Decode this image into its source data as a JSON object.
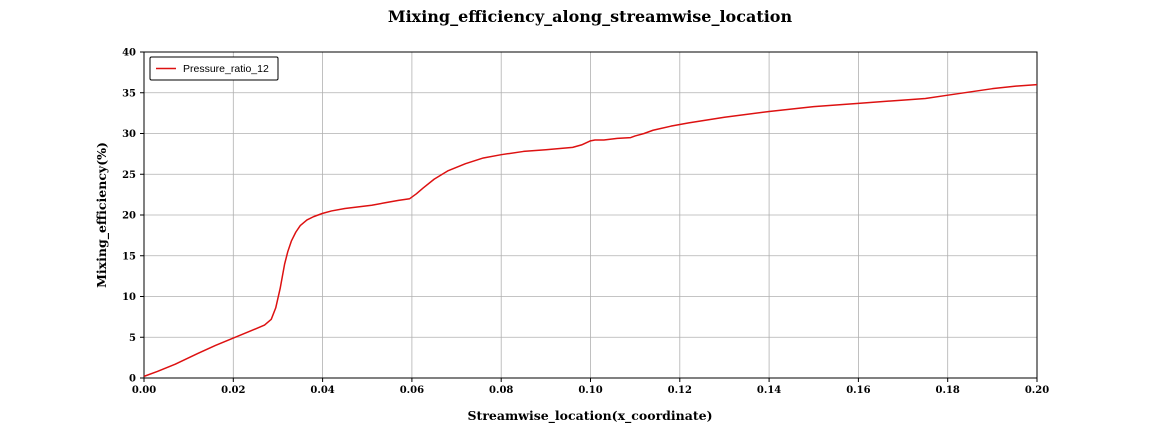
{
  "chart_data": {
    "type": "line",
    "title": "Mixing_efficiency_along_streamwise_location",
    "xlabel": "Streamwise_location(x_coordinate)",
    "ylabel": "Mixing_efficiency(%)",
    "xlim": [
      0,
      0.2
    ],
    "ylim": [
      0,
      40
    ],
    "xticks": [
      0,
      0.02,
      0.04,
      0.06,
      0.08,
      0.1,
      0.12,
      0.14,
      0.16,
      0.18,
      0.2
    ],
    "xtick_labels": [
      "0.00",
      "0.02",
      "0.04",
      "0.06",
      "0.08",
      "0.10",
      "0.12",
      "0.14",
      "0.16",
      "0.18",
      "0.20"
    ],
    "yticks": [
      0,
      5,
      10,
      15,
      20,
      25,
      30,
      35,
      40
    ],
    "ytick_labels": [
      "0",
      "5",
      "10",
      "15",
      "20",
      "25",
      "30",
      "35",
      "40"
    ],
    "grid": true,
    "legend_position": "top-left",
    "series": [
      {
        "name": "Pressure_ratio_12",
        "color": "#dd1111",
        "x": [
          0.0,
          0.003,
          0.007,
          0.012,
          0.016,
          0.02,
          0.024,
          0.027,
          0.0285,
          0.0295,
          0.0305,
          0.031,
          0.0315,
          0.0322,
          0.033,
          0.034,
          0.035,
          0.0365,
          0.038,
          0.04,
          0.042,
          0.045,
          0.048,
          0.051,
          0.054,
          0.057,
          0.0595,
          0.061,
          0.0625,
          0.065,
          0.068,
          0.072,
          0.076,
          0.08,
          0.085,
          0.09,
          0.096,
          0.098,
          0.1,
          0.101,
          0.103,
          0.106,
          0.109,
          0.11,
          0.112,
          0.114,
          0.118,
          0.122,
          0.13,
          0.14,
          0.15,
          0.16,
          0.17,
          0.175,
          0.18,
          0.185,
          0.19,
          0.195,
          0.2
        ],
        "y": [
          0.2,
          0.8,
          1.7,
          3.0,
          4.0,
          4.9,
          5.8,
          6.5,
          7.2,
          8.6,
          11.0,
          12.5,
          14.0,
          15.5,
          16.8,
          17.9,
          18.7,
          19.4,
          19.8,
          20.2,
          20.5,
          20.8,
          21.0,
          21.2,
          21.5,
          21.8,
          22.0,
          22.6,
          23.3,
          24.4,
          25.4,
          26.3,
          27.0,
          27.4,
          27.8,
          28.0,
          28.3,
          28.6,
          29.1,
          29.2,
          29.2,
          29.4,
          29.5,
          29.7,
          30.0,
          30.4,
          30.9,
          31.3,
          32.0,
          32.7,
          33.3,
          33.7,
          34.1,
          34.3,
          34.7,
          35.1,
          35.5,
          35.8,
          36.0
        ]
      }
    ]
  }
}
